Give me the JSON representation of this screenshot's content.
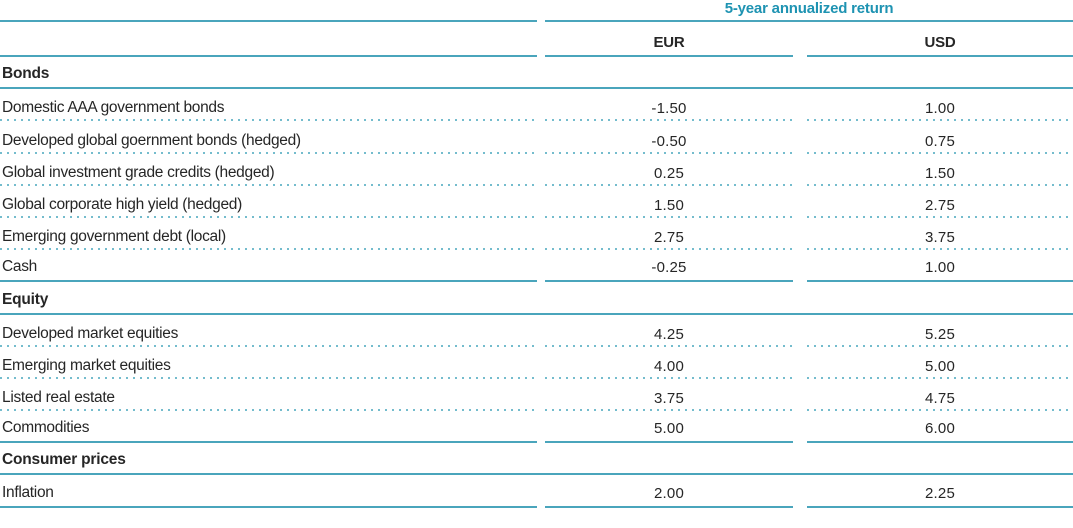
{
  "chart_data": {
    "type": "table",
    "title": "5-year annualized return",
    "columns": [
      "EUR",
      "USD"
    ],
    "groups": [
      {
        "name": "Bonds",
        "rows": [
          {
            "label": "Domestic AAA government bonds",
            "eur": "-1.50",
            "usd": "1.00"
          },
          {
            "label": "Developed global goernment bonds (hedged)",
            "eur": "-0.50",
            "usd": "0.75"
          },
          {
            "label": "Global investment grade credits (hedged)",
            "eur": "0.25",
            "usd": "1.50"
          },
          {
            "label": "Global corporate high yield (hedged)",
            "eur": "1.50",
            "usd": "2.75"
          },
          {
            "label": "Emerging government debt (local)",
            "eur": "2.75",
            "usd": "3.75"
          },
          {
            "label": "Cash",
            "eur": "-0.25",
            "usd": "1.00"
          }
        ]
      },
      {
        "name": "Equity",
        "rows": [
          {
            "label": "Developed market equities",
            "eur": "4.25",
            "usd": "5.25"
          },
          {
            "label": "Emerging market equities",
            "eur": "4.00",
            "usd": "5.00"
          },
          {
            "label": "Listed real estate",
            "eur": "3.75",
            "usd": "4.75"
          },
          {
            "label": "Commodities",
            "eur": "5.00",
            "usd": "6.00"
          }
        ]
      },
      {
        "name": "Consumer prices",
        "rows": [
          {
            "label": "Inflation",
            "eur": "2.00",
            "usd": "2.25"
          }
        ]
      }
    ]
  },
  "colors": {
    "line_teal": "#4aa5bc",
    "dotted_teal": "#74bccd",
    "header_teal": "#1e93b2",
    "text_dark": "#262626"
  }
}
